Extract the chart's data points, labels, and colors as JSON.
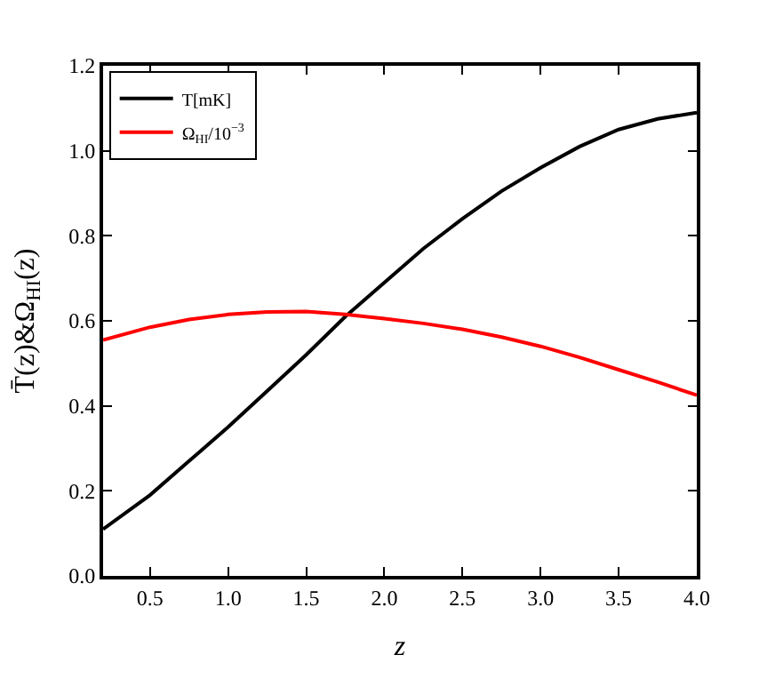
{
  "chart_data": {
    "type": "line",
    "xlabel": "z",
    "ylabel": "T̄(z)&Ω$_{HI}$(z)",
    "x": [
      0.2,
      0.5,
      0.75,
      1.0,
      1.25,
      1.5,
      1.75,
      2.0,
      2.25,
      2.5,
      2.75,
      3.0,
      3.25,
      3.5,
      3.75,
      4.0
    ],
    "series": [
      {
        "name": "T[mK]",
        "color": "#000000",
        "values": [
          0.11,
          0.19,
          0.27,
          0.35,
          0.435,
          0.52,
          0.61,
          0.69,
          0.77,
          0.84,
          0.905,
          0.96,
          1.01,
          1.05,
          1.075,
          1.09
        ]
      },
      {
        "name": "Ω$_{HI}$/10$^{−3}$",
        "color": "#ff0000",
        "values": [
          0.555,
          0.585,
          0.603,
          0.615,
          0.621,
          0.622,
          0.615,
          0.605,
          0.594,
          0.58,
          0.562,
          0.54,
          0.514,
          0.485,
          0.456,
          0.425
        ]
      }
    ],
    "xlim": [
      0.2,
      4.0
    ],
    "xticks": [
      0.5,
      {
        "value": 1,
        "label": "1.0"
      },
      1.5,
      {
        "value": 2,
        "label": "2.0"
      },
      2.5,
      {
        "value": 3,
        "label": "3.0"
      },
      3.5,
      {
        "value": 4,
        "label": "4.0"
      }
    ],
    "ylim": [
      0.0,
      1.2
    ],
    "yticks": [
      {
        "value": 0,
        "label": "0.0"
      },
      0.2,
      0.4,
      0.6,
      0.8,
      {
        "value": 1,
        "label": "1.0"
      },
      1.2
    ],
    "legend": "top left",
    "marker": "none",
    "line_style": "solid"
  }
}
